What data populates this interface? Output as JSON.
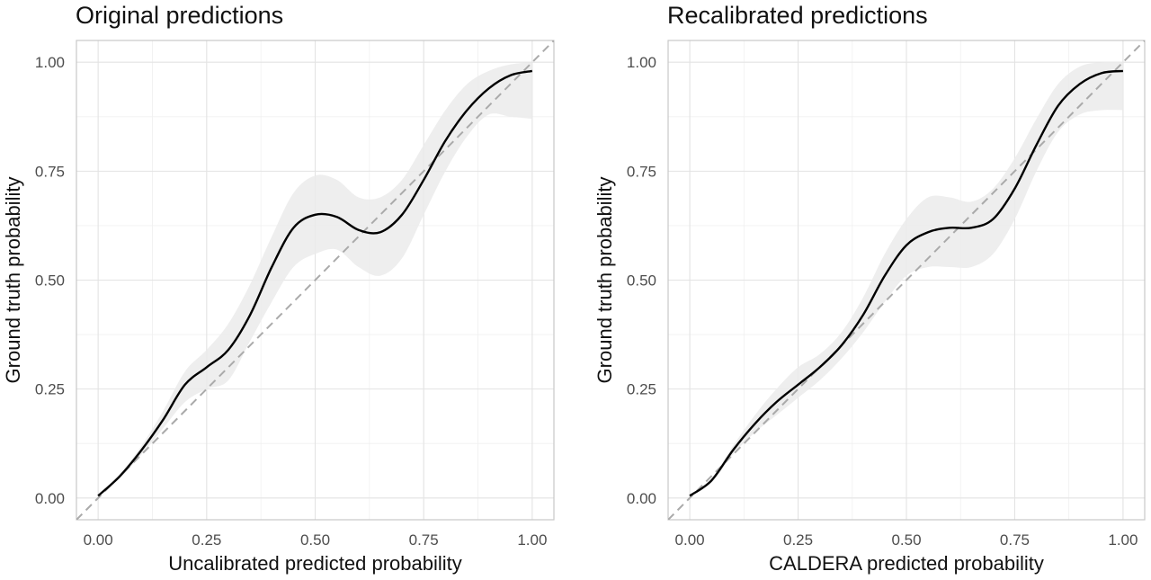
{
  "chart_data": [
    {
      "type": "line",
      "title": "Original predictions",
      "xlabel": "Uncalibrated predicted probability",
      "ylabel": "Ground truth probability",
      "xlim": [
        -0.05,
        1.05
      ],
      "ylim": [
        -0.05,
        1.05
      ],
      "x_ticks": [
        "0.00",
        "0.25",
        "0.50",
        "0.75",
        "1.00"
      ],
      "y_ticks": [
        "0.00",
        "0.25",
        "0.50",
        "0.75",
        "1.00"
      ],
      "grid": true,
      "reference_line": {
        "name": "perfect calibration",
        "style": "dashed",
        "color": "#aaaaaa",
        "x": [
          -0.05,
          1.05
        ],
        "y": [
          -0.05,
          1.05
        ]
      },
      "series": [
        {
          "color": "#000000",
          "x": [
            0.0,
            0.05,
            0.1,
            0.15,
            0.2,
            0.25,
            0.3,
            0.35,
            0.4,
            0.45,
            0.5,
            0.55,
            0.6,
            0.65,
            0.7,
            0.75,
            0.8,
            0.85,
            0.9,
            0.95,
            1.0
          ],
          "y": [
            0.005,
            0.05,
            0.11,
            0.18,
            0.26,
            0.3,
            0.34,
            0.42,
            0.53,
            0.62,
            0.65,
            0.645,
            0.615,
            0.61,
            0.65,
            0.73,
            0.82,
            0.89,
            0.94,
            0.97,
            0.98
          ],
          "ci_lower": [
            0.005,
            0.045,
            0.1,
            0.16,
            0.22,
            0.25,
            0.27,
            0.36,
            0.45,
            0.53,
            0.56,
            0.57,
            0.53,
            0.51,
            0.55,
            0.65,
            0.75,
            0.83,
            0.88,
            0.875,
            0.87
          ],
          "ci_upper": [
            0.005,
            0.055,
            0.12,
            0.2,
            0.29,
            0.34,
            0.4,
            0.49,
            0.6,
            0.7,
            0.74,
            0.73,
            0.69,
            0.69,
            0.73,
            0.81,
            0.89,
            0.95,
            0.98,
            0.995,
            1.0
          ]
        }
      ]
    },
    {
      "type": "line",
      "title": "Recalibrated predictions",
      "xlabel": "CALDERA predicted probability",
      "ylabel": "Ground truth probability",
      "xlim": [
        -0.05,
        1.05
      ],
      "ylim": [
        -0.05,
        1.05
      ],
      "x_ticks": [
        "0.00",
        "0.25",
        "0.50",
        "0.75",
        "1.00"
      ],
      "y_ticks": [
        "0.00",
        "0.25",
        "0.50",
        "0.75",
        "1.00"
      ],
      "grid": true,
      "reference_line": {
        "name": "perfect calibration",
        "style": "dashed",
        "color": "#aaaaaa",
        "x": [
          -0.05,
          1.05
        ],
        "y": [
          -0.05,
          1.05
        ]
      },
      "series": [
        {
          "color": "#000000",
          "x": [
            0.0,
            0.05,
            0.1,
            0.15,
            0.2,
            0.25,
            0.3,
            0.35,
            0.4,
            0.45,
            0.5,
            0.55,
            0.6,
            0.65,
            0.7,
            0.75,
            0.8,
            0.85,
            0.9,
            0.95,
            1.0
          ],
          "y": [
            0.005,
            0.04,
            0.11,
            0.17,
            0.22,
            0.26,
            0.3,
            0.35,
            0.42,
            0.51,
            0.58,
            0.61,
            0.62,
            0.62,
            0.64,
            0.71,
            0.81,
            0.9,
            0.95,
            0.975,
            0.98
          ],
          "ci_lower": [
            0.005,
            0.035,
            0.1,
            0.15,
            0.19,
            0.23,
            0.27,
            0.32,
            0.38,
            0.45,
            0.51,
            0.53,
            0.53,
            0.53,
            0.56,
            0.64,
            0.75,
            0.84,
            0.88,
            0.89,
            0.89
          ],
          "ci_upper": [
            0.005,
            0.045,
            0.12,
            0.19,
            0.25,
            0.3,
            0.33,
            0.38,
            0.46,
            0.56,
            0.64,
            0.69,
            0.69,
            0.68,
            0.71,
            0.78,
            0.87,
            0.95,
            0.99,
            1.0,
            1.0
          ]
        }
      ]
    }
  ]
}
